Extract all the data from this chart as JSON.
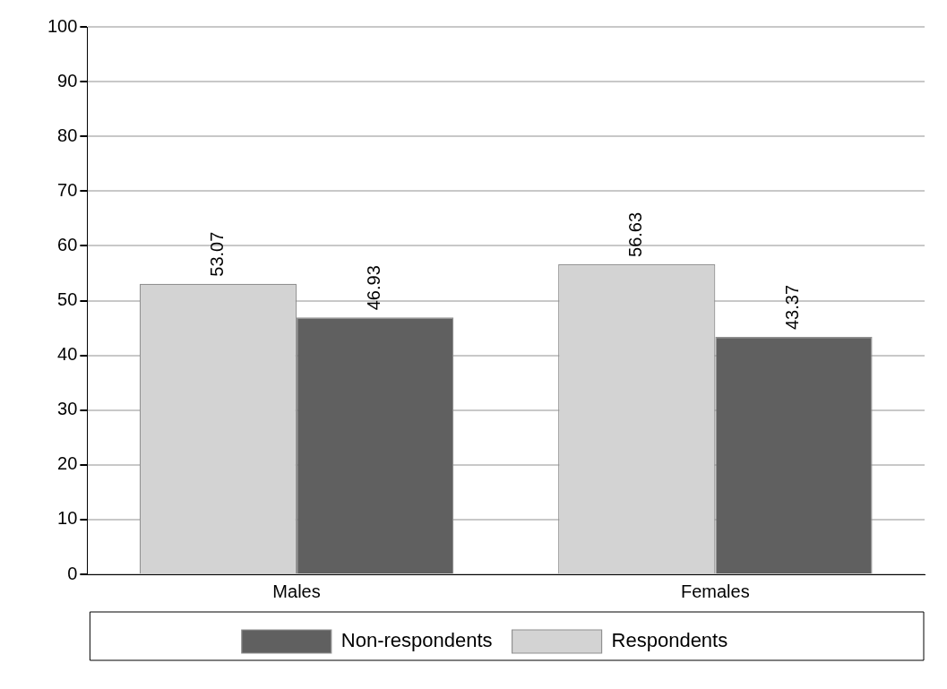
{
  "chart_data": {
    "type": "bar",
    "categories": [
      "Males",
      "Females"
    ],
    "series": [
      {
        "name": "Respondents",
        "color": "#d3d3d3",
        "values": [
          53.07,
          56.63
        ]
      },
      {
        "name": "Non-respondents",
        "color": "#606060",
        "values": [
          46.93,
          43.37
        ]
      }
    ],
    "ylim": [
      0,
      100
    ],
    "yticks": [
      0,
      10,
      20,
      30,
      40,
      50,
      60,
      70,
      80,
      90,
      100
    ],
    "grid": "y",
    "legend": "bottom",
    "data_labels": true
  }
}
